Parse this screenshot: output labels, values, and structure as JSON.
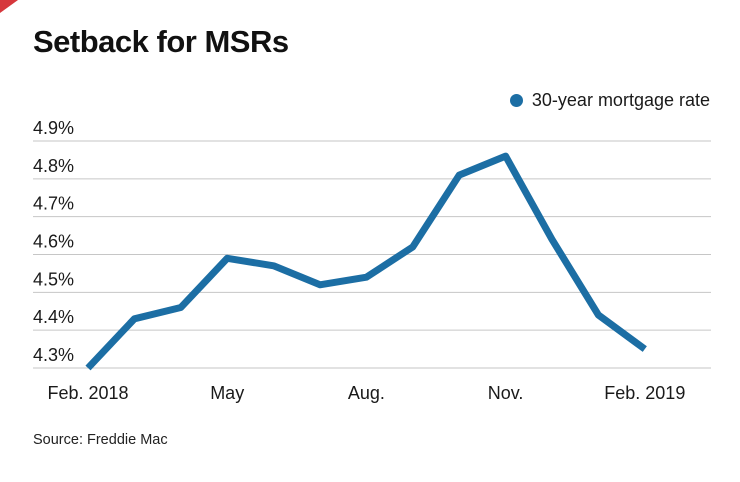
{
  "page": {
    "title": "Setback for MSRs",
    "source": "Source: Freddie Mac"
  },
  "legend": {
    "label": "30-year mortgage rate"
  },
  "colors": {
    "line": "#1c6ea4",
    "grid": "#c6c6c6",
    "text": "#1a1a1a",
    "corner": "#d6373c"
  },
  "chart_data": {
    "type": "line",
    "title": "Setback for MSRs",
    "source": "Freddie Mac",
    "x": [
      "Feb. 2018",
      "Mar. 2018",
      "Apr. 2018",
      "May 2018",
      "Jun. 2018",
      "Jul. 2018",
      "Aug. 2018",
      "Sep. 2018",
      "Oct. 2018",
      "Nov. 2018",
      "Dec. 2018",
      "Jan. 2019",
      "Feb. 2019"
    ],
    "series": [
      {
        "name": "30-year mortgage rate",
        "values": [
          4.3,
          4.43,
          4.46,
          4.59,
          4.57,
          4.52,
          4.54,
          4.62,
          4.81,
          4.86,
          4.64,
          4.44,
          4.35
        ]
      }
    ],
    "x_tick_labels": [
      {
        "index": 0,
        "label": "Feb. 2018"
      },
      {
        "index": 3,
        "label": "May"
      },
      {
        "index": 6,
        "label": "Aug."
      },
      {
        "index": 9,
        "label": "Nov."
      },
      {
        "index": 12,
        "label": "Feb. 2019"
      }
    ],
    "y_ticks": [
      {
        "value": 4.9,
        "label": "4.9%"
      },
      {
        "value": 4.8,
        "label": "4.8%"
      },
      {
        "value": 4.7,
        "label": "4.7%"
      },
      {
        "value": 4.6,
        "label": "4.6%"
      },
      {
        "value": 4.5,
        "label": "4.5%"
      },
      {
        "value": 4.4,
        "label": "4.4%"
      },
      {
        "value": 4.3,
        "label": "4.3%"
      }
    ],
    "ylim": [
      4.3,
      4.9
    ],
    "ylabel": "",
    "xlabel": "",
    "grid": "horizontal",
    "legend_position": "top-right"
  }
}
